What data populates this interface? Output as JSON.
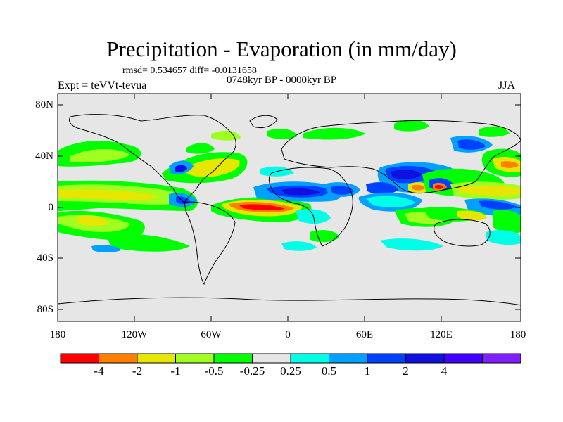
{
  "title": "Precipitation - Evaporation (in mm/day)",
  "stats_text": "rmsd= 0.534657 diff= -0.0131658",
  "period_text": "0748kyr BP - 0000kyr BP",
  "experiment_text": "Expt = teVVt-tevua",
  "season_text": "JJA",
  "lat_labels": [
    "80N",
    "40N",
    "0",
    "40S",
    "80S"
  ],
  "lon_labels": [
    "180",
    "120W",
    "60W",
    "0",
    "60E",
    "120E",
    "180"
  ],
  "colorbar": {
    "colors": [
      "#ff0000",
      "#ff7f00",
      "#e6e600",
      "#a0ff20",
      "#00ff00",
      "#e6e6e6",
      "#00ffe6",
      "#00a0ff",
      "#0040ff",
      "#1010e0",
      "#4000ff",
      "#8020ff"
    ],
    "labels": [
      "-4",
      "-2",
      "-1",
      "-0.5",
      "-0.25",
      "0.25",
      "0.5",
      "1",
      "2",
      "4"
    ]
  },
  "map_background": "#e6e6e6"
}
